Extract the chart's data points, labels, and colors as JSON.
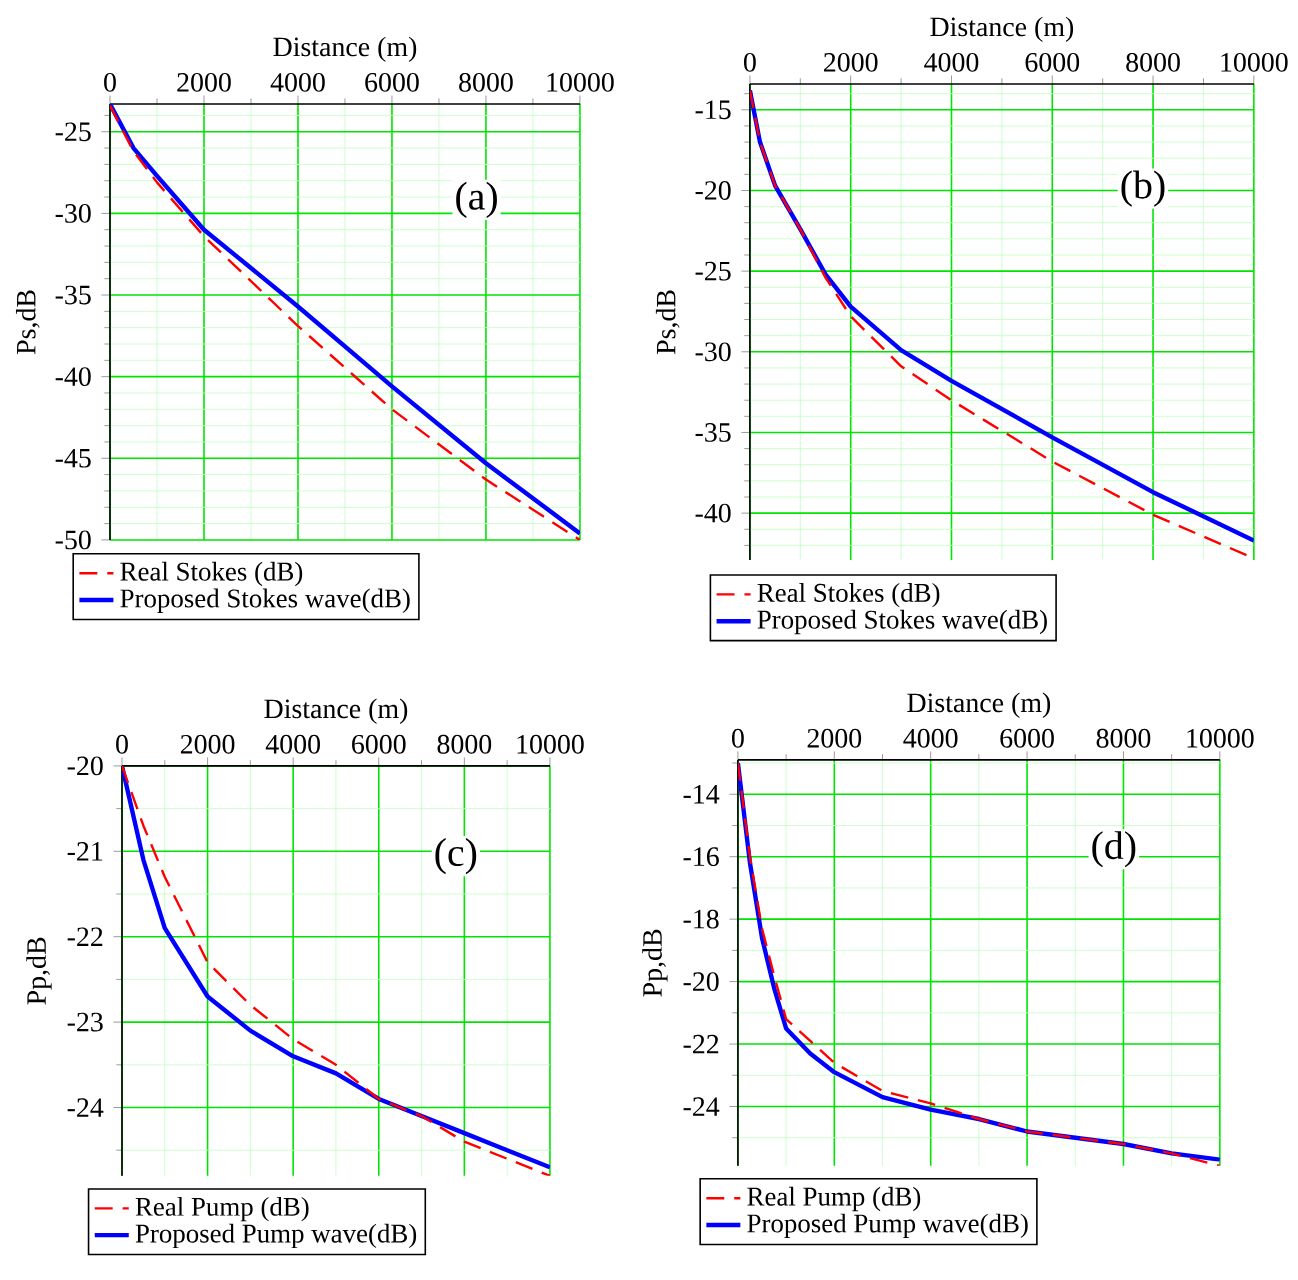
{
  "chart_data": [
    {
      "type": "line",
      "xlabel": "Distance (m)",
      "ylabel": "Ps,dB",
      "annotations": [
        "(a)"
      ],
      "xlim": [
        0,
        10000
      ],
      "ylim": [
        -50,
        -23.3
      ],
      "xticks": [
        0,
        {
          "value": 1000,
          "label": null
        },
        2000,
        {
          "value": 3000,
          "label": null
        },
        4000,
        {
          "value": 5000,
          "label": null
        },
        6000,
        {
          "value": 7000,
          "label": null
        },
        8000,
        {
          "value": 9000,
          "label": null
        },
        10000
      ],
      "yticks": [
        -50,
        {
          "value": -49,
          "label": null
        },
        {
          "value": -48,
          "label": null
        },
        {
          "value": -47,
          "label": null
        },
        {
          "value": -46,
          "label": null
        },
        -45,
        {
          "value": -44,
          "label": null
        },
        {
          "value": -43,
          "label": null
        },
        {
          "value": -42,
          "label": null
        },
        {
          "value": -41,
          "label": null
        },
        -40,
        {
          "value": -39,
          "label": null
        },
        {
          "value": -38,
          "label": null
        },
        {
          "value": -37,
          "label": null
        },
        {
          "value": -36,
          "label": null
        },
        -35,
        {
          "value": -34,
          "label": null
        },
        {
          "value": -33,
          "label": null
        },
        {
          "value": -32,
          "label": null
        },
        {
          "value": -31,
          "label": null
        },
        -30,
        {
          "value": -29,
          "label": null
        },
        {
          "value": -28,
          "label": null
        },
        {
          "value": -27,
          "label": null
        },
        {
          "value": -26,
          "label": null
        },
        -25,
        {
          "value": -24,
          "label": null
        }
      ],
      "grid": true,
      "legend": "bottom",
      "series": [
        {
          "name": "Real Stokes (dB)",
          "color": "#ff0000",
          "line_style": "dashed",
          "x": [
            0,
            500,
            1000,
            2000,
            4000,
            6000,
            8000,
            10000
          ],
          "values": [
            -23.4,
            -26.2,
            -28.1,
            -31.4,
            -36.9,
            -42,
            -46.3,
            -50
          ]
        },
        {
          "name": "Proposed Stokes wave(dB)",
          "color": "#0000ff",
          "line_style": "solid",
          "x": [
            0,
            500,
            1000,
            2000,
            4000,
            6000,
            8000,
            10000
          ],
          "values": [
            -23.3,
            -26,
            -27.7,
            -31,
            -35.7,
            -40.6,
            -45.3,
            -49.6
          ]
        }
      ]
    },
    {
      "type": "line",
      "xlabel": "Distance (m)",
      "ylabel": "Ps,dB",
      "annotations": [
        "(b)"
      ],
      "xlim": [
        0,
        10000
      ],
      "ylim": [
        -42.9,
        -13.4
      ],
      "xticks": [
        0,
        {
          "value": 1000,
          "label": null
        },
        2000,
        {
          "value": 3000,
          "label": null
        },
        4000,
        {
          "value": 5000,
          "label": null
        },
        6000,
        {
          "value": 7000,
          "label": null
        },
        8000,
        {
          "value": 9000,
          "label": null
        },
        10000
      ],
      "yticks": [
        {
          "value": -42,
          "label": null
        },
        {
          "value": -41,
          "label": null
        },
        -40,
        {
          "value": -39,
          "label": null
        },
        {
          "value": -38,
          "label": null
        },
        {
          "value": -37,
          "label": null
        },
        {
          "value": -36,
          "label": null
        },
        -35,
        {
          "value": -34,
          "label": null
        },
        {
          "value": -33,
          "label": null
        },
        {
          "value": -32,
          "label": null
        },
        {
          "value": -31,
          "label": null
        },
        -30,
        {
          "value": -29,
          "label": null
        },
        {
          "value": -28,
          "label": null
        },
        {
          "value": -27,
          "label": null
        },
        {
          "value": -26,
          "label": null
        },
        -25,
        {
          "value": -24,
          "label": null
        },
        {
          "value": -23,
          "label": null
        },
        {
          "value": -22,
          "label": null
        },
        {
          "value": -21,
          "label": null
        },
        -20,
        {
          "value": -19,
          "label": null
        },
        {
          "value": -18,
          "label": null
        },
        {
          "value": -17,
          "label": null
        },
        {
          "value": -16,
          "label": null
        },
        -15,
        {
          "value": -14,
          "label": null
        }
      ],
      "grid": true,
      "legend": "bottom",
      "series": [
        {
          "name": "Real Stokes (dB)",
          "color": "#ff0000",
          "line_style": "dashed",
          "x": [
            0,
            200,
            500,
            1000,
            1500,
            2000,
            3000,
            4000,
            6000,
            8000,
            10000
          ],
          "values": [
            -13.8,
            -17,
            -19.7,
            -22.4,
            -25.4,
            -27.8,
            -30.9,
            -33,
            -36.8,
            -40.1,
            -42.8
          ]
        },
        {
          "name": "Proposed Stokes wave(dB)",
          "color": "#0000ff",
          "line_style": "solid",
          "x": [
            0,
            200,
            500,
            1000,
            1500,
            2000,
            3000,
            4000,
            6000,
            8000,
            10000
          ],
          "values": [
            -13.8,
            -17,
            -19.7,
            -22.4,
            -25.2,
            -27.2,
            -29.9,
            -31.8,
            -35.3,
            -38.7,
            -41.7
          ]
        }
      ]
    },
    {
      "type": "line",
      "xlabel": "Distance (m)",
      "ylabel": "Pp,dB",
      "annotations": [
        "(c)"
      ],
      "xlim": [
        0,
        10000
      ],
      "ylim": [
        -24.8,
        -20
      ],
      "xticks": [
        0,
        {
          "value": 1000,
          "label": null
        },
        2000,
        {
          "value": 3000,
          "label": null
        },
        4000,
        {
          "value": 5000,
          "label": null
        },
        6000,
        {
          "value": 7000,
          "label": null
        },
        8000,
        {
          "value": 9000,
          "label": null
        },
        10000
      ],
      "yticks": [
        {
          "value": -24.5,
          "label": null
        },
        -24,
        {
          "value": -23.5,
          "label": null
        },
        -23,
        {
          "value": -22.5,
          "label": null
        },
        -22,
        {
          "value": -21.5,
          "label": null
        },
        -21,
        {
          "value": -20.5,
          "label": null
        },
        -20
      ],
      "grid": true,
      "legend": "bottom",
      "series": [
        {
          "name": "Real Pump (dB)",
          "color": "#ff0000",
          "line_style": "dashed",
          "x": [
            0,
            500,
            1000,
            2000,
            3000,
            4000,
            5000,
            6000,
            7000,
            8000,
            9000,
            10000
          ],
          "values": [
            -20,
            -20.7,
            -21.3,
            -22.3,
            -22.8,
            -23.2,
            -23.5,
            -23.9,
            -24.1,
            -24.4,
            -24.6,
            -24.8
          ]
        },
        {
          "name": "Proposed Pump wave(dB)",
          "color": "#0000ff",
          "line_style": "solid",
          "x": [
            0,
            500,
            1000,
            2000,
            3000,
            4000,
            5000,
            6000,
            7000,
            8000,
            9000,
            10000
          ],
          "values": [
            -20,
            -21.1,
            -21.9,
            -22.7,
            -23.1,
            -23.4,
            -23.6,
            -23.9,
            -24.1,
            -24.3,
            -24.5,
            -24.7
          ]
        }
      ]
    },
    {
      "type": "line",
      "xlabel": "Distance (m)",
      "ylabel": "Pp,dB",
      "annotations": [
        "(d)"
      ],
      "xlim": [
        0,
        10000
      ],
      "ylim": [
        -25.9,
        -12.9
      ],
      "xticks": [
        0,
        {
          "value": 1000,
          "label": null
        },
        2000,
        {
          "value": 3000,
          "label": null
        },
        4000,
        {
          "value": 5000,
          "label": null
        },
        6000,
        {
          "value": 7000,
          "label": null
        },
        8000,
        {
          "value": 9000,
          "label": null
        },
        10000
      ],
      "yticks": [
        {
          "value": -25,
          "label": null
        },
        -24,
        {
          "value": -23,
          "label": null
        },
        -22,
        {
          "value": -21,
          "label": null
        },
        -20,
        {
          "value": -19,
          "label": null
        },
        -18,
        {
          "value": -17,
          "label": null
        },
        -16,
        {
          "value": -15,
          "label": null
        },
        -14,
        {
          "value": -13,
          "label": null
        }
      ],
      "grid": true,
      "legend": "bottom",
      "series": [
        {
          "name": "Real Pump (dB)",
          "color": "#ff0000",
          "line_style": "dashed",
          "x": [
            0,
            250,
            500,
            750,
            1000,
            1500,
            2000,
            3000,
            4000,
            5000,
            6000,
            7000,
            8000,
            9000,
            10000
          ],
          "values": [
            -13,
            -16,
            -18.3,
            -19.8,
            -21.2,
            -21.9,
            -22.6,
            -23.5,
            -23.9,
            -24.4,
            -24.8,
            -25,
            -25.2,
            -25.5,
            -25.9
          ]
        },
        {
          "name": "Proposed Pump wave(dB)",
          "color": "#0000ff",
          "line_style": "solid",
          "x": [
            0,
            250,
            500,
            750,
            1000,
            1500,
            2000,
            3000,
            4000,
            5000,
            6000,
            7000,
            8000,
            9000,
            10000
          ],
          "values": [
            -13,
            -16.2,
            -18.6,
            -20.2,
            -21.5,
            -22.3,
            -22.9,
            -23.7,
            -24.1,
            -24.4,
            -24.8,
            -25,
            -25.2,
            -25.5,
            -25.7
          ]
        }
      ]
    }
  ]
}
